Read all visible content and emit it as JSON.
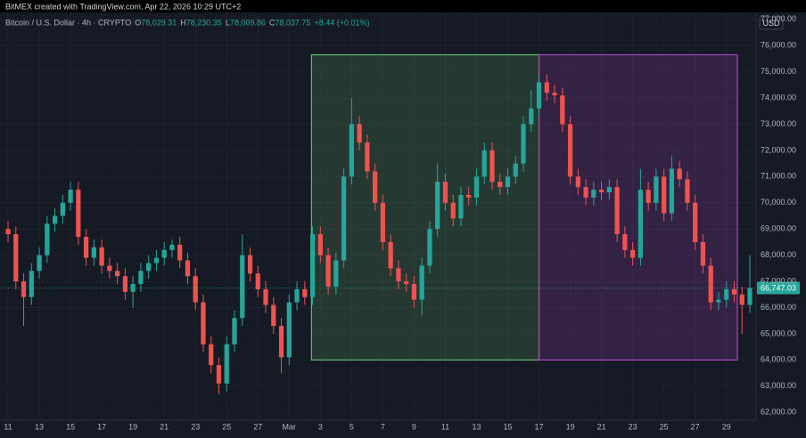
{
  "header": "BitMEX created with TradingView.com, Apr 22, 2026 10:29 UTC+2",
  "chart_data": {
    "type": "candlestick",
    "title": "Bitcoin / U.S. Dollar · 4h · CRYPTO",
    "ohlc_legend": [
      {
        "label": "O",
        "value": "78,029.31"
      },
      {
        "label": "H",
        "value": "78,230.35"
      },
      {
        "label": "L",
        "value": "78,009.86"
      },
      {
        "label": "C",
        "value": "78,037.75"
      }
    ],
    "change": "+8.44 (+0.01%)",
    "currency": "USD",
    "up_color": "#26a69a",
    "down_color": "#ef5350",
    "x": [
      0,
      0.5,
      1,
      1.5,
      2,
      2.5,
      3,
      3.5,
      4,
      4.5,
      5,
      5.5,
      6,
      6.5,
      7,
      7.5,
      8,
      8.5,
      9,
      9.5,
      10,
      10.5,
      11,
      11.5,
      12,
      12.5,
      13,
      13.5,
      14,
      14.5,
      15,
      15.5,
      16,
      16.5,
      17,
      17.5,
      18,
      18.5,
      19,
      19.5,
      20,
      20.5,
      21,
      21.5,
      22,
      22.5,
      23,
      23.5,
      24,
      24.5,
      25,
      25.5,
      26,
      26.5,
      27,
      27.5,
      28,
      28.5,
      29,
      29.5,
      30,
      30.5,
      31,
      31.5,
      32,
      32.5,
      33,
      33.5,
      34,
      34.5,
      35,
      35.5,
      36,
      36.5,
      37,
      37.5,
      38,
      38.5,
      39,
      39.5,
      40,
      40.5,
      41,
      41.5,
      42,
      42.5,
      43,
      43.5,
      44,
      44.5,
      45,
      45.5,
      46,
      46.5,
      47,
      47.5
    ],
    "open": [
      69000,
      68800,
      67000,
      66400,
      67400,
      68000,
      69200,
      69500,
      70000,
      70500,
      68700,
      67900,
      68300,
      67600,
      67400,
      67200,
      66600,
      66900,
      67400,
      67700,
      67900,
      68200,
      68400,
      67800,
      67200,
      66200,
      64600,
      63800,
      63100,
      64600,
      65600,
      68000,
      67300,
      66700,
      66100,
      65300,
      64100,
      66200,
      66700,
      66400,
      68800,
      68000,
      66800,
      67800,
      71000,
      73000,
      72300,
      71200,
      70000,
      68500,
      67500,
      67000,
      66900,
      66300,
      67600,
      69000,
      70800,
      70000,
      69400,
      70300,
      70200,
      71000,
      72000,
      70800,
      70600,
      71000,
      71500,
      73000,
      73600,
      74600,
      74200,
      74100,
      73000,
      71000,
      70600,
      70200,
      70500,
      70400,
      70600,
      68800,
      68200,
      67900,
      70500,
      70000,
      71000,
      69600,
      71300,
      70900,
      70000,
      68500,
      67600,
      66200,
      66300,
      66700,
      66500,
      66100
    ],
    "high": [
      69300,
      69100,
      67300,
      67700,
      68300,
      69500,
      69800,
      70300,
      70800,
      70800,
      69000,
      68600,
      68600,
      67900,
      67700,
      67500,
      67200,
      67700,
      68000,
      68200,
      68500,
      68600,
      68700,
      68100,
      67500,
      66500,
      64900,
      64100,
      64900,
      65900,
      68800,
      68300,
      67600,
      67000,
      66400,
      65600,
      66500,
      67000,
      67000,
      69100,
      69100,
      68300,
      68100,
      71300,
      74000,
      73300,
      72600,
      71500,
      70300,
      68800,
      67800,
      67300,
      67200,
      67900,
      69300,
      71500,
      71100,
      70300,
      70600,
      70600,
      71300,
      72300,
      72300,
      71100,
      71300,
      71800,
      73300,
      74300,
      74900,
      74900,
      74500,
      74400,
      73300,
      71300,
      70900,
      70800,
      70800,
      70900,
      70900,
      69100,
      68500,
      71300,
      70800,
      71300,
      71300,
      71800,
      71600,
      71200,
      70300,
      68800,
      67900,
      66600,
      67000,
      67000,
      66800,
      68000
    ],
    "low": [
      68500,
      66700,
      65300,
      66100,
      67100,
      67700,
      68900,
      69200,
      69700,
      68400,
      67600,
      67600,
      67300,
      67100,
      66900,
      66300,
      66000,
      66600,
      67100,
      67400,
      67600,
      67900,
      67500,
      66900,
      65900,
      64300,
      63500,
      62700,
      62800,
      64300,
      65300,
      67000,
      66400,
      65800,
      65000,
      63500,
      63800,
      65900,
      66100,
      66100,
      67700,
      66500,
      66500,
      67500,
      70700,
      72000,
      70900,
      69700,
      68200,
      67200,
      66700,
      66600,
      66000,
      65700,
      67300,
      68700,
      69700,
      69100,
      69100,
      69900,
      69900,
      70700,
      70500,
      70300,
      70300,
      70700,
      71200,
      72700,
      73300,
      73900,
      73800,
      72700,
      70700,
      70300,
      69900,
      69900,
      70100,
      70100,
      68500,
      67900,
      67600,
      67600,
      69700,
      69700,
      69300,
      69300,
      70600,
      69700,
      68200,
      67300,
      65900,
      65900,
      66000,
      66200,
      65000,
      65800
    ],
    "close": [
      68800,
      67000,
      66400,
      67400,
      68000,
      69200,
      69500,
      70000,
      70500,
      68700,
      67900,
      68300,
      67600,
      67400,
      67200,
      66600,
      66900,
      67400,
      67700,
      67900,
      68200,
      68400,
      67800,
      67200,
      66200,
      64600,
      63800,
      63100,
      64600,
      65600,
      68000,
      67300,
      66700,
      66100,
      65300,
      64100,
      66200,
      66700,
      66400,
      68800,
      68000,
      66800,
      67800,
      71000,
      73000,
      72300,
      71200,
      70000,
      68500,
      67500,
      67000,
      66900,
      66300,
      67600,
      69000,
      70800,
      70000,
      69400,
      70300,
      70200,
      71000,
      72000,
      70800,
      70600,
      71000,
      71500,
      73000,
      73600,
      74600,
      74200,
      74100,
      73000,
      71000,
      70600,
      70200,
      70500,
      70400,
      70600,
      68800,
      68200,
      67900,
      70500,
      70000,
      71000,
      69600,
      71300,
      70900,
      70000,
      68500,
      67600,
      66200,
      66300,
      66700,
      66500,
      66100,
      66747.03
    ],
    "last_price_label": "66,747.03",
    "ranges": [
      {
        "x": [
          19.43,
          34
        ],
        "y": [
          64000,
          75650
        ],
        "color": "#66bb6a"
      },
      {
        "x": [
          34,
          46.7
        ],
        "y": [
          64000,
          75650
        ],
        "color": "#ab47bc"
      }
    ],
    "xlim": [
      -0.23,
      47.9
    ],
    "ylim": [
      61700,
      77300
    ],
    "xticks": [
      {
        "value": 0,
        "label": "11"
      },
      {
        "value": 2,
        "label": "13"
      },
      {
        "value": 4,
        "label": "15"
      },
      {
        "value": 6,
        "label": "17"
      },
      {
        "value": 8,
        "label": "19"
      },
      {
        "value": 10,
        "label": "21"
      },
      {
        "value": 12,
        "label": "23"
      },
      {
        "value": 14,
        "label": "25"
      },
      {
        "value": 16,
        "label": "27"
      },
      {
        "value": 18,
        "label": "Mar"
      },
      {
        "value": 20,
        "label": "3"
      },
      {
        "value": 22,
        "label": "5"
      },
      {
        "value": 24,
        "label": "7"
      },
      {
        "value": 26,
        "label": "9"
      },
      {
        "value": 28,
        "label": "11"
      },
      {
        "value": 30,
        "label": "13"
      },
      {
        "value": 32,
        "label": "15"
      },
      {
        "value": 34,
        "label": "17"
      },
      {
        "value": 36,
        "label": "19"
      },
      {
        "value": 38,
        "label": "21"
      },
      {
        "value": 40,
        "label": "23"
      },
      {
        "value": 42,
        "label": "25"
      },
      {
        "value": 44,
        "label": "27"
      },
      {
        "value": 46,
        "label": "29"
      }
    ],
    "yticks": [
      {
        "value": 62000,
        "label": "62,000.00"
      },
      {
        "value": 63000,
        "label": "63,000.00"
      },
      {
        "value": 64000,
        "label": "64,000.00"
      },
      {
        "value": 65000,
        "label": "65,000.00"
      },
      {
        "value": 66000,
        "label": "66,000.00"
      },
      {
        "value": 67000,
        "label": "67,000.00"
      },
      {
        "value": 68000,
        "label": "68,000.00"
      },
      {
        "value": 69000,
        "label": "69,000.00"
      },
      {
        "value": 70000,
        "label": "70,000.00"
      },
      {
        "value": 71000,
        "label": "71,000.00"
      },
      {
        "value": 72000,
        "label": "72,000.00"
      },
      {
        "value": 73000,
        "label": "73,000.00"
      },
      {
        "value": 74000,
        "label": "74,000.00"
      },
      {
        "value": 75000,
        "label": "75,000.00"
      },
      {
        "value": 76000,
        "label": "76,000.00"
      },
      {
        "value": 77000,
        "label": "77,000.00"
      }
    ],
    "grid": true
  }
}
